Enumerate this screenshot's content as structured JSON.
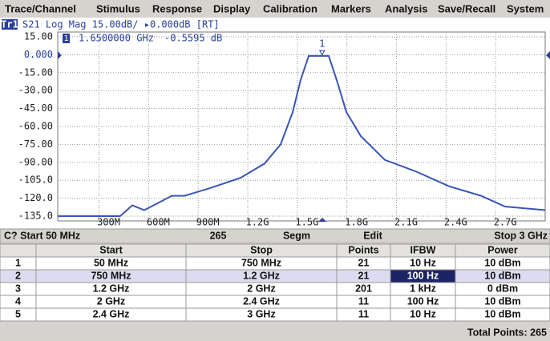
{
  "menu": [
    "Trace/Channel",
    "Stimulus",
    "Response",
    "Display",
    "Calibration",
    "Markers",
    "Analysis",
    "Save/Recall",
    "System"
  ],
  "trace_label": "Tr1",
  "trace_info": "S21 Log Mag 15.00dB/ ▸0.000dB [RT]",
  "chart_data": {
    "type": "line",
    "xlim": [
      50,
      3000
    ],
    "ylim": [
      -135,
      15
    ],
    "xticks": [
      {
        "value": 300,
        "label": "300M"
      },
      {
        "value": 600,
        "label": "600M"
      },
      {
        "value": 900,
        "label": "900M"
      },
      {
        "value": 1200,
        "label": "1.2G"
      },
      {
        "value": 1500,
        "label": "1.5G"
      },
      {
        "value": 1800,
        "label": "1.8G"
      },
      {
        "value": 2100,
        "label": "2.1G"
      },
      {
        "value": 2400,
        "label": "2.4G"
      },
      {
        "value": 2700,
        "label": "2.7G"
      }
    ],
    "yticks": [
      {
        "value": 15,
        "label": "15.00"
      },
      {
        "value": 0,
        "label": "0.000"
      },
      {
        "value": -15,
        "label": "-15.00"
      },
      {
        "value": -30,
        "label": "-30.00"
      },
      {
        "value": -45,
        "label": "-45.00"
      },
      {
        "value": -60,
        "label": "-60.00"
      },
      {
        "value": -75,
        "label": "-75.00"
      },
      {
        "value": -90,
        "label": "-90.00"
      },
      {
        "value": -105,
        "label": "-105.0"
      },
      {
        "value": -120,
        "label": "-120.0"
      },
      {
        "value": -135,
        "label": "-135.0"
      }
    ],
    "grid": true,
    "series": [
      {
        "color": "#3a55b8",
        "x": [
          50,
          428,
          501,
          574,
          671,
          740,
          817,
          962,
          1156,
          1302,
          1399,
          1472,
          1520,
          1569,
          1690,
          1738,
          1797,
          1884,
          2030,
          2224,
          2418,
          2612,
          2757,
          3000
        ],
        "values": [
          -135,
          -135,
          -126,
          -130,
          -123,
          -118,
          -118,
          -112,
          -103,
          -91,
          -75,
          -48,
          -21,
          -1,
          -1,
          -21,
          -48,
          -68,
          -88,
          -98,
          -110,
          -118,
          -127,
          -130
        ]
      }
    ],
    "markers": [
      {
        "name": "1",
        "x": 1650,
        "value": -0.5595,
        "x_label": "1.6500000 GHz",
        "value_label": "-0.5595 dB"
      }
    ]
  },
  "status": {
    "start": "C? Start 50 MHz",
    "points": "265",
    "mode": "Segm",
    "edit": "Edit",
    "stop": "Stop 3 GHz"
  },
  "table": {
    "columns": [
      "",
      "Start",
      "Stop",
      "Points",
      "IFBW",
      "Power"
    ],
    "rows": [
      [
        "1",
        "50 MHz",
        "750 MHz",
        "21",
        "10 Hz",
        "10 dBm"
      ],
      [
        "2",
        "750 MHz",
        "1.2 GHz",
        "21",
        "100 Hz",
        "10 dBm"
      ],
      [
        "3",
        "1.2 GHz",
        "2 GHz",
        "201",
        "1 kHz",
        "0 dBm"
      ],
      [
        "4",
        "2 GHz",
        "2.4 GHz",
        "11",
        "100 Hz",
        "10 dBm"
      ],
      [
        "5",
        "2.4 GHz",
        "3 GHz",
        "11",
        "10 Hz",
        "10 dBm"
      ]
    ]
  },
  "footer": "Total Points: 265"
}
